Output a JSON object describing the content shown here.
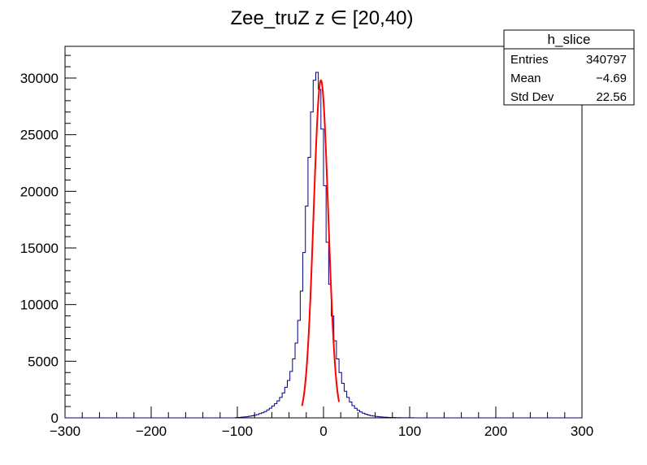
{
  "chart_data": {
    "type": "histogram",
    "title": "Zee_truZ z  ∈ [20,40)",
    "xlim": [
      -300,
      300
    ],
    "ylim": [
      0,
      32800
    ],
    "x_ticks": [
      -300,
      -200,
      -100,
      0,
      100,
      200,
      300
    ],
    "x_tick_labels": [
      "−300",
      "−200",
      "−100",
      "0",
      "100",
      "200",
      "300"
    ],
    "y_ticks": [
      0,
      5000,
      10000,
      15000,
      20000,
      25000,
      30000
    ],
    "y_tick_labels": [
      "0",
      "5000",
      "10000",
      "15000",
      "20000",
      "25000",
      "30000"
    ],
    "bin_width": 3,
    "series": [
      {
        "name": "h_slice",
        "color": "#00007f",
        "bins_x_low": [
          -300,
          -297,
          -294,
          -291,
          -288,
          -285,
          -282,
          -279,
          -276,
          -273,
          -270,
          -267,
          -264,
          -261,
          -258,
          -255,
          -252,
          -249,
          -246,
          -243,
          -240,
          -237,
          -234,
          -231,
          -228,
          -225,
          -222,
          -219,
          -216,
          -213,
          -210,
          -207,
          -204,
          -201,
          -198,
          -195,
          -192,
          -189,
          -186,
          -183,
          -180,
          -177,
          -174,
          -171,
          -168,
          -165,
          -162,
          -159,
          -156,
          -153,
          -150,
          -147,
          -144,
          -141,
          -138,
          -135,
          -132,
          -129,
          -126,
          -123,
          -120,
          -117,
          -114,
          -111,
          -108,
          -105,
          -102,
          -99,
          -96,
          -93,
          -90,
          -87,
          -84,
          -81,
          -78,
          -75,
          -72,
          -69,
          -66,
          -63,
          -60,
          -57,
          -54,
          -51,
          -48,
          -45,
          -42,
          -39,
          -36,
          -33,
          -30,
          -27,
          -24,
          -21,
          -18,
          -15,
          -12,
          -9,
          -6,
          -3,
          0,
          3,
          6,
          9,
          12,
          15,
          18,
          21,
          24,
          27,
          30,
          33,
          36,
          39,
          42,
          45,
          48,
          51,
          54,
          57,
          60,
          63,
          66,
          69,
          72,
          75,
          78,
          81,
          84,
          87,
          90,
          93,
          96,
          99,
          102,
          105,
          108,
          111,
          114,
          117,
          120,
          123,
          126,
          129,
          132,
          135,
          138,
          141,
          144,
          147,
          150,
          153,
          156,
          159,
          162,
          165,
          168,
          171,
          174,
          177,
          180,
          183,
          186,
          189,
          192,
          195,
          198,
          201,
          204,
          207,
          210,
          213,
          216,
          219,
          222,
          225,
          228,
          231,
          234,
          237,
          240,
          243,
          246,
          249,
          252,
          255,
          258,
          261,
          264,
          267,
          270,
          273,
          276,
          279,
          282,
          285,
          288,
          291,
          294,
          297
        ],
        "counts": [
          0,
          0,
          0,
          0,
          0,
          0,
          0,
          0,
          0,
          0,
          0,
          0,
          0,
          0,
          0,
          0,
          0,
          0,
          0,
          0,
          0,
          0,
          0,
          0,
          0,
          0,
          0,
          0,
          0,
          0,
          0,
          0,
          0,
          0,
          0,
          0,
          0,
          0,
          0,
          0,
          0,
          0,
          0,
          0,
          0,
          0,
          0,
          0,
          0,
          0,
          0,
          0,
          0,
          0,
          0,
          0,
          0,
          0,
          0,
          0,
          0,
          0,
          0,
          0,
          0,
          0,
          30,
          40,
          60,
          80,
          100,
          140,
          180,
          230,
          290,
          380,
          450,
          560,
          700,
          850,
          1050,
          1250,
          1500,
          1800,
          2200,
          2700,
          3300,
          4100,
          5200,
          6600,
          8600,
          11200,
          14600,
          18700,
          23000,
          27000,
          29800,
          30500,
          29000,
          25500,
          20500,
          15500,
          11800,
          9000,
          6800,
          5200,
          4000,
          3050,
          2350,
          1800,
          1400,
          1080,
          840,
          660,
          520,
          410,
          320,
          250,
          200,
          160,
          125,
          100,
          80,
          60,
          50,
          40,
          32,
          26,
          20,
          16,
          12,
          10,
          8,
          6,
          5,
          4,
          3,
          2,
          2,
          1,
          1,
          1,
          0,
          0,
          0,
          0,
          0,
          0,
          0,
          0,
          0,
          0,
          0,
          0,
          0,
          0,
          0,
          0,
          0,
          0,
          0,
          0,
          0,
          0,
          0,
          0,
          0,
          0,
          0,
          0,
          0,
          0,
          0,
          0,
          0,
          0,
          0,
          0,
          0,
          0,
          0,
          0,
          0,
          0,
          0,
          0,
          0,
          0,
          0,
          0,
          0,
          0,
          0,
          0,
          0,
          0,
          0,
          0,
          0,
          0
        ]
      },
      {
        "name": "fit",
        "color": "#ff0000",
        "type": "gaussian",
        "amplitude": 29800,
        "mean": -3,
        "sigma": 8.5,
        "x_range": [
          -25,
          18
        ]
      }
    ],
    "stats_box": {
      "title": "h_slice",
      "rows": [
        {
          "label": "Entries",
          "value": "340797"
        },
        {
          "label": "Mean",
          "value": "−4.69"
        },
        {
          "label": "Std Dev",
          "value": "22.56"
        }
      ]
    }
  }
}
